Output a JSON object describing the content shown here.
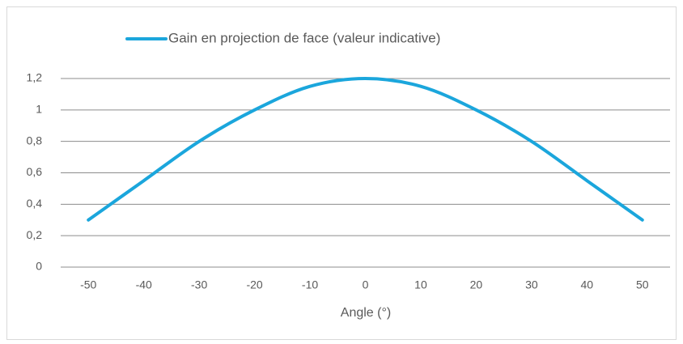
{
  "chart_data": {
    "type": "line",
    "x_label": "Angle (°)",
    "x": [
      -50,
      -40,
      -30,
      -20,
      -10,
      0,
      10,
      20,
      30,
      40,
      50
    ],
    "series": [
      {
        "name": "Gain en projection de face (valeur indicative)",
        "color": "#1ba6dc",
        "values": [
          0.3,
          0.55,
          0.8,
          1.0,
          1.15,
          1.2,
          1.15,
          1.0,
          0.8,
          0.55,
          0.3
        ]
      }
    ],
    "xlim": [
      -55,
      55
    ],
    "xticks": [
      -50,
      -40,
      -30,
      -20,
      -10,
      0,
      10,
      20,
      30,
      40,
      50
    ],
    "ylim": [
      0,
      1.2
    ],
    "yticks": [
      0,
      {
        "value": 0.2,
        "label": "0,2"
      },
      {
        "value": 0.4,
        "label": "0,4"
      },
      {
        "value": 0.6,
        "label": "0,6"
      },
      {
        "value": 0.8,
        "label": "0,8"
      },
      1,
      {
        "value": 1.2,
        "label": "1,2"
      }
    ],
    "grid": true,
    "legend": "top"
  }
}
